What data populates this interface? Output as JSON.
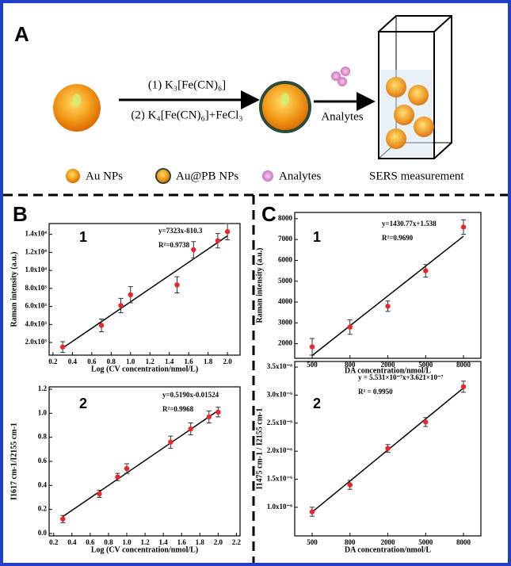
{
  "panel_letters": [
    "A",
    "B",
    "C"
  ],
  "scheme": {
    "step1": "(1) K₃[Fe(CN)₆]",
    "step2": "(2) K₄[Fe(CN)₆]+FeCl₃",
    "arrow_label": "Analytes",
    "legend": [
      "Au NPs",
      "Au@PB NPs",
      "Analytes"
    ],
    "measurement": "SERS measurement"
  },
  "chart_data": [
    {
      "type": "scatter",
      "label": "1",
      "annotations": [
        "y=7323x-810.3",
        "R²=0.9738"
      ],
      "x_label": "Log (CV concentration/nmol/L)",
      "y_label": "Raman intensity (a.u.)",
      "x": [
        0.3,
        0.7,
        0.9,
        1.0,
        1.48,
        1.65,
        1.9,
        2.0
      ],
      "values": [
        1500,
        3900,
        6100,
        7300,
        8400,
        12300,
        13300,
        14300
      ],
      "errors": [
        600,
        700,
        800,
        900,
        900,
        900,
        800,
        900
      ],
      "fit": {
        "slope": 7323,
        "intercept": -810.3
      },
      "color": "#e8262b",
      "xlim": [
        0.16,
        2.13
      ],
      "xticks": [
        0.2,
        0.4,
        0.6,
        0.8,
        {
          "value": 1,
          "label": "1.0"
        },
        1.2,
        1.4,
        1.6,
        1.8,
        {
          "value": 2,
          "label": "2.0"
        }
      ],
      "ylim": [
        600,
        15200
      ],
      "yticks": [
        {
          "value": 2000,
          "label": "2.0x10³"
        },
        {
          "value": 4000,
          "label": "4.0x10³"
        },
        {
          "value": 6000,
          "label": "6.0x10³"
        },
        {
          "value": 8000,
          "label": "8.0x10³"
        },
        {
          "value": 10000,
          "label": "1.0x10⁴"
        },
        {
          "value": 12000,
          "label": "1.2x10⁴"
        },
        {
          "value": 14000,
          "label": "1.4x10⁴"
        }
      ]
    },
    {
      "type": "scatter",
      "label": "2",
      "annotations": [
        "y=0.5190x-0.01524",
        "R²=0.9968"
      ],
      "x_label": "Log (CV concentration/nmol/L)",
      "y_label": "I1617 cm-1/I2155 cm-1",
      "x": [
        0.3,
        0.7,
        0.9,
        1.0,
        1.48,
        1.7,
        1.9,
        2.0
      ],
      "values": [
        0.12,
        0.33,
        0.47,
        0.54,
        0.76,
        0.87,
        0.97,
        1.01
      ],
      "errors": [
        0.03,
        0.03,
        0.03,
        0.04,
        0.05,
        0.05,
        0.05,
        0.04
      ],
      "fit": {
        "slope": 0.519,
        "intercept": -0.01524
      },
      "color": "#e8262b",
      "xlim": [
        0.15,
        2.24
      ],
      "xticks": [
        0.2,
        0.4,
        0.6,
        0.8,
        {
          "value": 1,
          "label": "1.0"
        },
        1.2,
        1.4,
        1.6,
        1.8,
        {
          "value": 2,
          "label": "2.0"
        },
        2.2
      ],
      "ylim": [
        -0.02,
        1.22
      ],
      "yticks": [
        {
          "value": 0,
          "label": "0.0"
        },
        0.2,
        0.4,
        0.6,
        0.8,
        {
          "value": 1,
          "label": "1.0"
        },
        1.2
      ]
    },
    {
      "type": "scatter",
      "label": "1",
      "annotations": [
        "y=1430.77x+1.538",
        "R²=0.9690"
      ],
      "x_label": "DA concentration/nmol/L",
      "y_label": "Raman intensity (a.u.)",
      "categories": [
        "500",
        "800",
        "2000",
        "5000",
        "8000"
      ],
      "values": [
        1850,
        2800,
        3800,
        5500,
        7600
      ],
      "errors": [
        400,
        350,
        250,
        300,
        350
      ],
      "fit": {
        "slope": 1430.77,
        "intercept": 1.538
      },
      "color": "#e8262b",
      "ylim": [
        1300,
        8300
      ],
      "yticks": [
        2000,
        3000,
        4000,
        5000,
        6000,
        7000,
        8000
      ]
    },
    {
      "type": "scatter",
      "label": "2",
      "annotations": [
        "y = 5.531×10⁻⁷x+3.621×10⁻⁷",
        "R² = 0.9950"
      ],
      "x_label": "DA concentration/nmol/L",
      "y_label": "I1475 cm-1 / I2155 cm-1",
      "categories": [
        "500",
        "800",
        "2000",
        "5000",
        "8000"
      ],
      "values": [
        9.2e-07,
        1.4e-06,
        2.05e-06,
        2.52e-06,
        3.15e-06
      ],
      "errors": [
        8e-08,
        8e-08,
        7e-08,
        8e-08,
        1e-07
      ],
      "fit": {
        "slope": 5.531e-07,
        "intercept": 3.621e-07
      },
      "color": "#e8262b",
      "ylim": [
        4.9e-07,
        3.6e-06
      ],
      "yticks": [
        {
          "value": 1e-06,
          "label": "1.0x10⁻⁶"
        },
        {
          "value": 1.5e-06,
          "label": "1.5x10⁻⁶"
        },
        {
          "value": 2e-06,
          "label": "2.0x10⁻⁶"
        },
        {
          "value": 2.5e-06,
          "label": "2.5x10⁻⁶"
        },
        {
          "value": 3e-06,
          "label": "3.0x10⁻⁶"
        },
        {
          "value": 3.5e-06,
          "label": "3.5x10⁻⁶"
        }
      ]
    }
  ]
}
